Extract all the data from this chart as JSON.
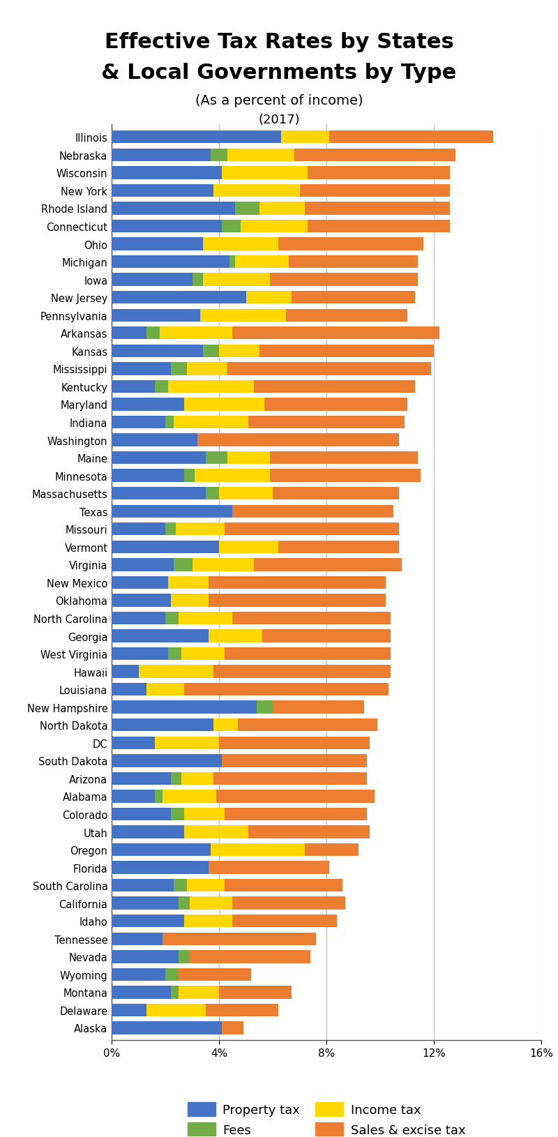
{
  "title_line1": "Effective Tax Rates by States",
  "title_line2": "& Local Governments by Type",
  "subtitle": "(As a percent of income)",
  "year": "(2017)",
  "colors": {
    "property_tax": "#4472C4",
    "fees": "#70AD47",
    "income_tax": "#FFD700",
    "sales_excise": "#ED7D31"
  },
  "states": [
    "Illinois",
    "Nebraska",
    "Wisconsin",
    "New York",
    "Rhode Island",
    "Connecticut",
    "Ohio",
    "Michigan",
    "Iowa",
    "New Jersey",
    "Pennsylvania",
    "Arkansas",
    "Kansas",
    "Mississippi",
    "Kentucky",
    "Maryland",
    "Indiana",
    "Washington",
    "Maine",
    "Minnesota",
    "Massachusetts",
    "Texas",
    "Missouri",
    "Vermont",
    "Virginia",
    "New Mexico",
    "Oklahoma",
    "North Carolina",
    "Georgia",
    "West Virginia",
    "Hawaii",
    "Louisiana",
    "New Hampshire",
    "North Dakota",
    "DC",
    "South Dakota",
    "Arizona",
    "Alabama",
    "Colorado",
    "Utah",
    "Oregon",
    "Florida",
    "South Carolina",
    "California",
    "Idaho",
    "Tennessee",
    "Nevada",
    "Wyoming",
    "Montana",
    "Delaware",
    "Alaska"
  ],
  "property_tax": [
    6.3,
    3.7,
    4.1,
    3.8,
    4.6,
    4.1,
    3.4,
    4.4,
    3.0,
    5.0,
    3.3,
    1.3,
    3.4,
    2.2,
    1.6,
    2.7,
    2.0,
    3.2,
    3.5,
    2.7,
    3.5,
    4.5,
    2.0,
    4.0,
    2.3,
    2.1,
    2.2,
    2.0,
    3.6,
    2.1,
    1.0,
    1.3,
    5.4,
    3.8,
    1.6,
    4.1,
    2.2,
    1.6,
    2.2,
    2.7,
    3.7,
    3.6,
    2.3,
    2.5,
    2.7,
    1.9,
    2.5,
    2.0,
    2.2,
    1.3,
    4.1
  ],
  "fees": [
    0.0,
    0.6,
    0.0,
    0.0,
    0.9,
    0.7,
    0.0,
    0.2,
    0.4,
    0.0,
    0.0,
    0.5,
    0.6,
    0.6,
    0.5,
    0.0,
    0.3,
    0.0,
    0.8,
    0.4,
    0.5,
    0.0,
    0.4,
    0.0,
    0.7,
    0.0,
    0.0,
    0.5,
    0.0,
    0.5,
    0.0,
    0.0,
    0.6,
    0.0,
    0.0,
    0.0,
    0.4,
    0.3,
    0.5,
    0.0,
    0.0,
    0.0,
    0.5,
    0.4,
    0.0,
    0.0,
    0.4,
    0.5,
    0.3,
    0.0,
    0.0
  ],
  "income_tax": [
    1.8,
    2.5,
    3.2,
    3.2,
    1.7,
    2.5,
    2.8,
    2.0,
    2.5,
    1.7,
    3.2,
    2.7,
    1.5,
    1.5,
    3.2,
    3.0,
    2.8,
    0.0,
    1.6,
    2.8,
    2.0,
    0.0,
    1.8,
    2.2,
    2.3,
    1.5,
    1.4,
    2.0,
    2.0,
    1.6,
    2.8,
    1.4,
    0.0,
    0.9,
    2.4,
    0.0,
    1.2,
    2.0,
    1.5,
    2.4,
    3.5,
    0.0,
    1.4,
    1.6,
    1.8,
    0.0,
    0.0,
    0.0,
    1.5,
    2.2,
    0.0
  ],
  "sales_excise": [
    6.1,
    6.0,
    5.3,
    5.6,
    5.4,
    5.3,
    5.4,
    4.8,
    5.5,
    4.6,
    4.5,
    7.7,
    6.5,
    7.6,
    6.0,
    5.3,
    5.8,
    7.5,
    5.5,
    5.6,
    4.7,
    6.0,
    6.5,
    4.5,
    5.5,
    6.6,
    6.6,
    5.9,
    4.8,
    6.2,
    6.6,
    7.6,
    3.4,
    5.2,
    5.6,
    5.4,
    5.7,
    5.9,
    5.3,
    4.5,
    2.0,
    4.5,
    4.4,
    4.2,
    3.9,
    5.7,
    4.5,
    2.7,
    2.7,
    2.7,
    0.8
  ],
  "xlim": [
    0,
    16
  ],
  "xtick_values": [
    0,
    4,
    8,
    12,
    16
  ],
  "xtick_labels": [
    "0%",
    "4%",
    "8%",
    "12%",
    "16%"
  ],
  "background_color": "#FFFFFF",
  "bar_height": 0.72,
  "gridline_color": "#BBBBBB",
  "title_fontsize": 22,
  "subtitle_fontsize": 14,
  "year_fontsize": 13,
  "ytick_fontsize": 10.5,
  "xtick_fontsize": 11
}
